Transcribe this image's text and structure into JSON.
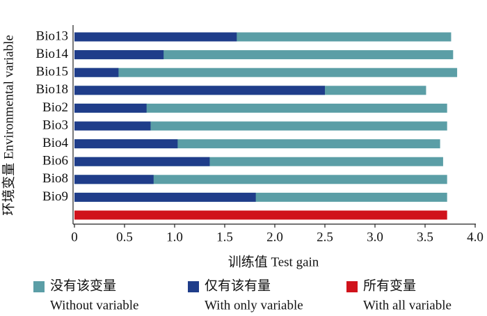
{
  "chart_data": {
    "type": "hbar_overlap",
    "x_label": "训练值 Test gain",
    "y_label": "环境变量 Environmental variable",
    "categories": [
      "Bio13",
      "Bio14",
      "Bio15",
      "Bio18",
      "Bio2",
      "Bio3",
      "Bio4",
      "Bio6",
      "Bio8",
      "Bio9",
      null
    ],
    "series": [
      {
        "name": "Without variable",
        "label_zh": "没有该变量",
        "color": "#5b9ea6",
        "values": [
          3.76,
          3.78,
          3.82,
          3.51,
          3.72,
          3.72,
          3.65,
          3.68,
          3.72,
          3.72,
          null
        ]
      },
      {
        "name": "With only variable",
        "label_zh": "仅有该有量",
        "color": "#1f3d8a",
        "values": [
          1.62,
          0.89,
          0.44,
          2.5,
          0.72,
          0.76,
          1.03,
          1.35,
          0.79,
          1.81,
          null
        ]
      },
      {
        "name": "With all variable",
        "label_zh": "所有变量",
        "color": "#d0121b",
        "values": [
          null,
          null,
          null,
          null,
          null,
          null,
          null,
          null,
          null,
          null,
          3.72
        ]
      }
    ],
    "xlim": [
      0,
      4
    ],
    "xticks": [
      0,
      0.5,
      {
        "value": 1,
        "label": "1.0"
      },
      1.5,
      {
        "value": 2,
        "label": "2.0"
      },
      2.5,
      {
        "value": 3,
        "label": "3.0"
      },
      3.5,
      {
        "value": 4,
        "label": "4.0"
      }
    ]
  }
}
